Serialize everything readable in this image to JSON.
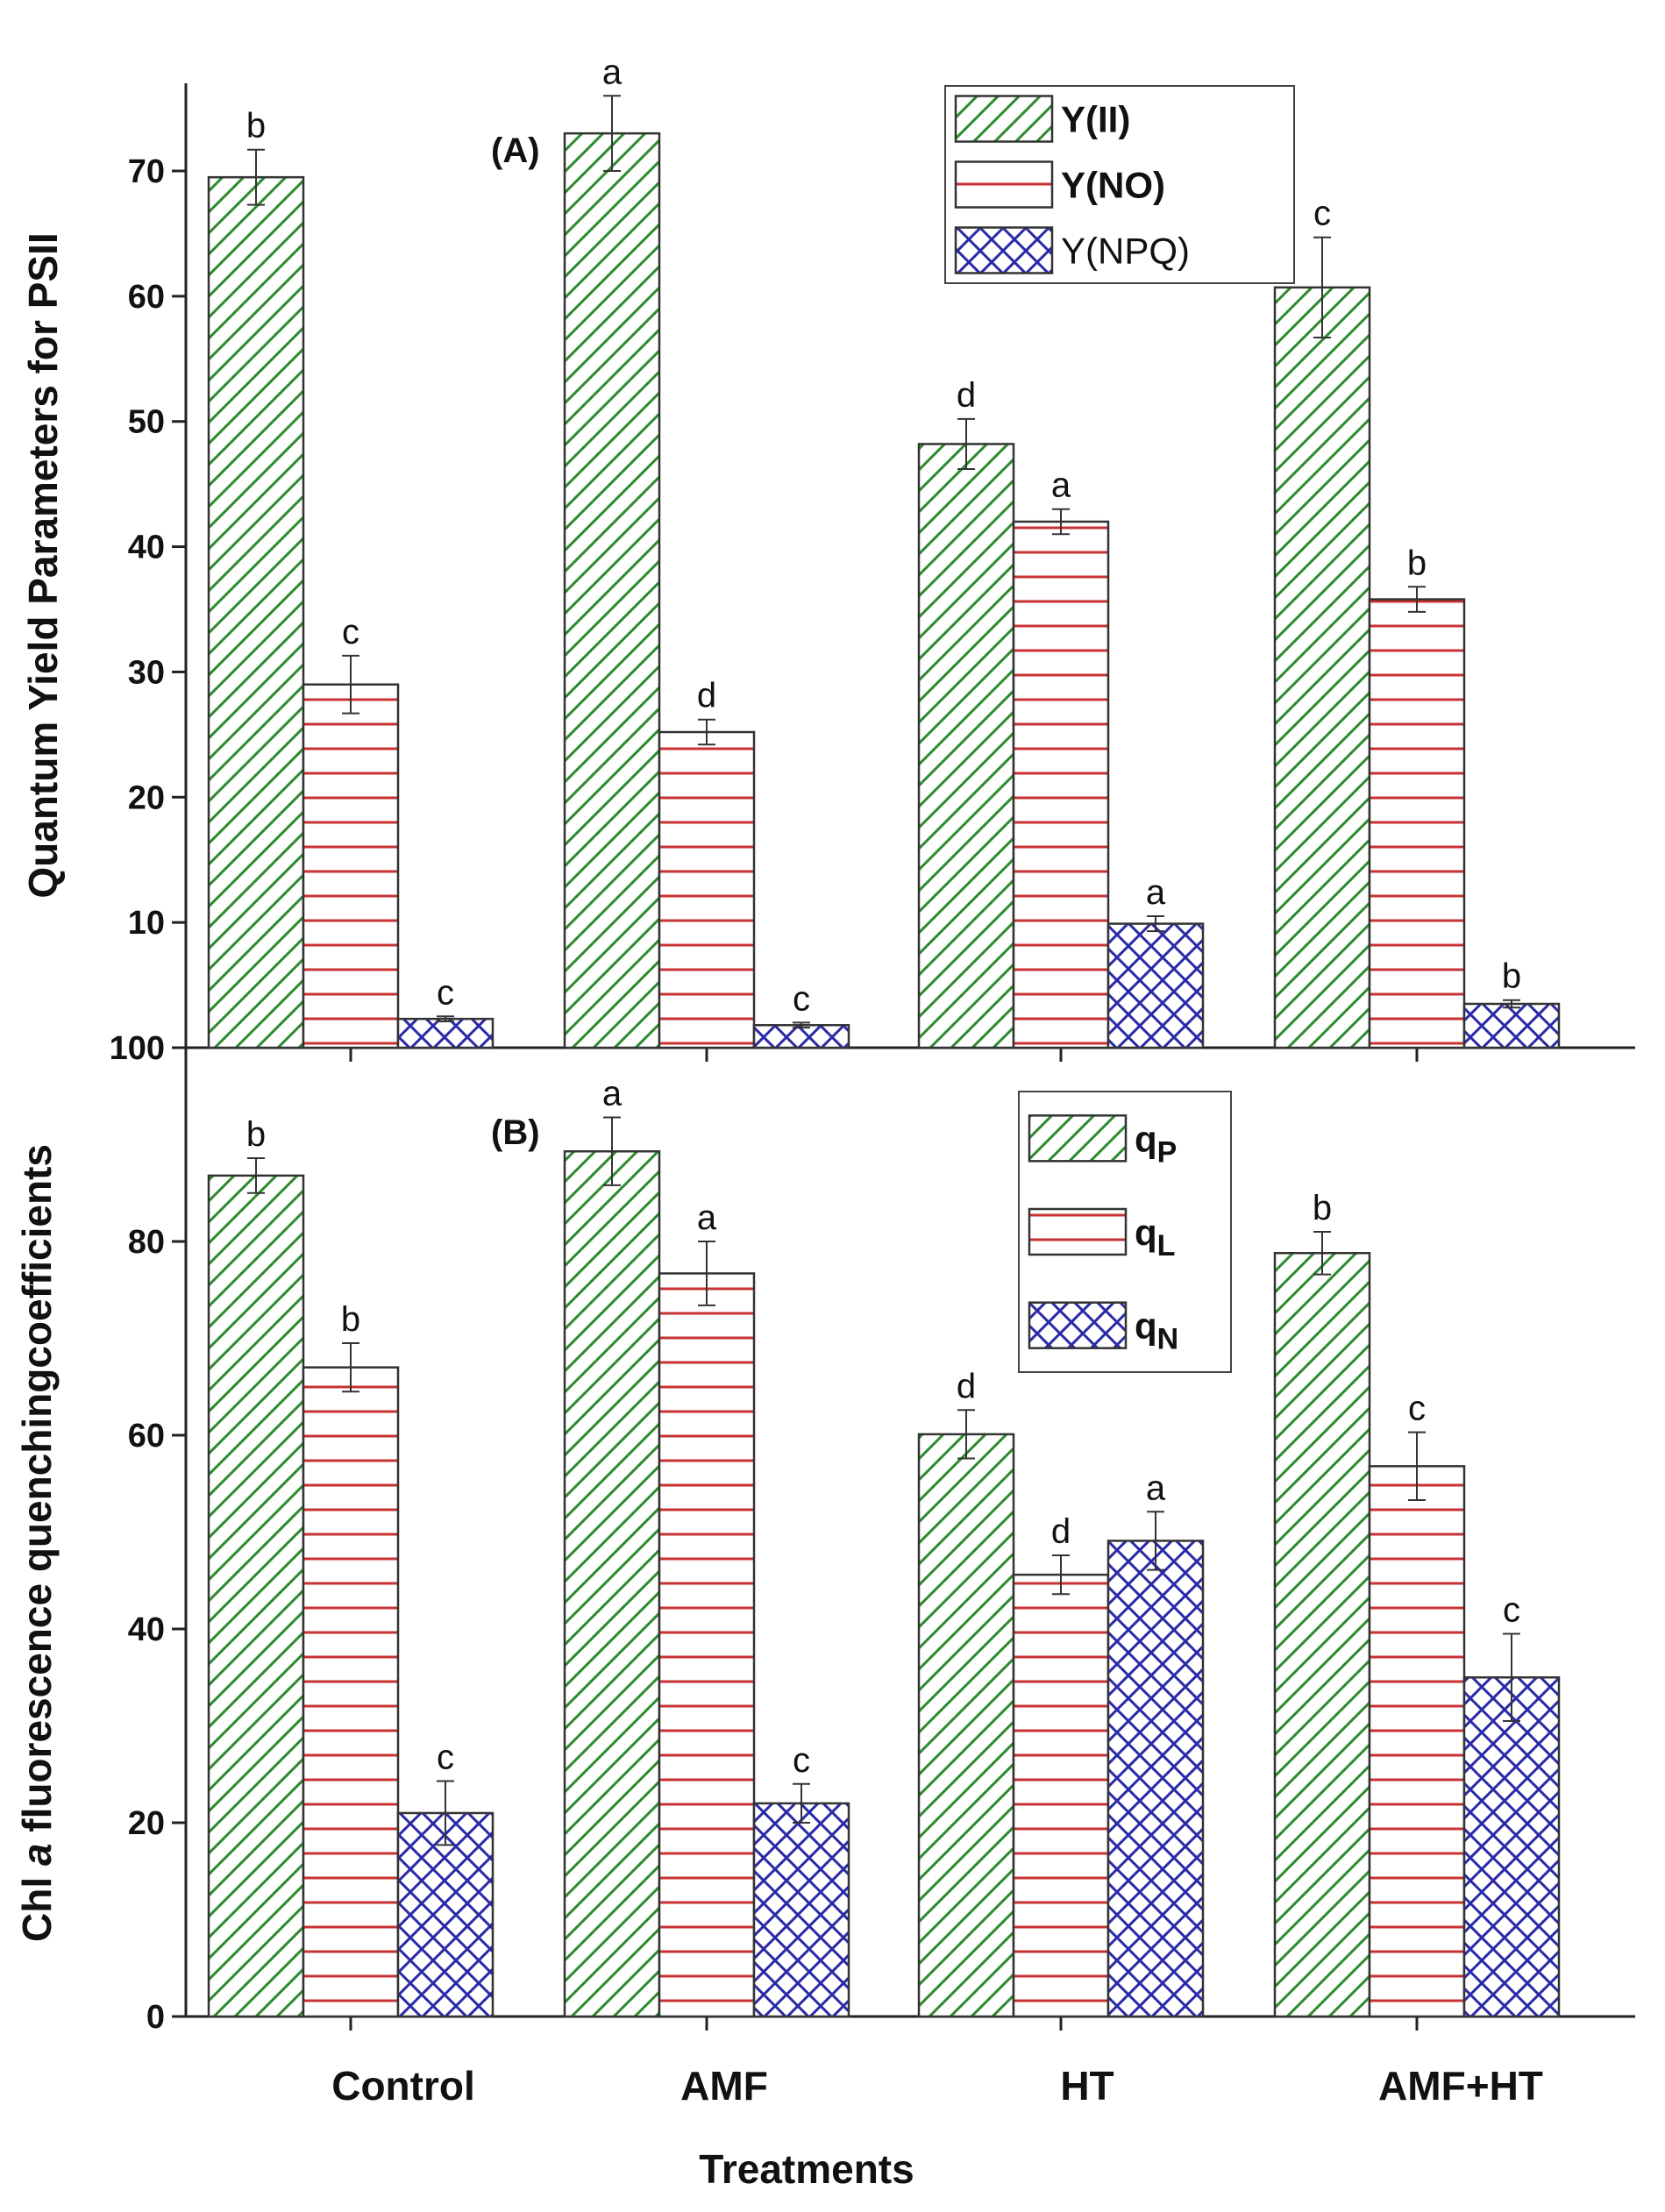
{
  "chart_data": [
    {
      "type": "bar",
      "panel_label": "(A)",
      "ylabel": "Quantum Yield Parameters for PSII",
      "xlabel": "",
      "ylim": [
        0,
        77
      ],
      "yticks": [
        10,
        20,
        30,
        40,
        50,
        60,
        70
      ],
      "categories": [
        "Control",
        "AMF",
        "HT",
        "AMF+HT"
      ],
      "legend_position": "top-right",
      "series": [
        {
          "name": "Y(II)",
          "pattern": "diagonal",
          "color": "#2e8b2e",
          "values": [
            69.5,
            73.0,
            48.2,
            60.7
          ],
          "errors": [
            2.2,
            3.0,
            2.0,
            4.0
          ],
          "letters": [
            "b",
            "a",
            "d",
            "c"
          ]
        },
        {
          "name": "Y(NO)",
          "pattern": "horizontal",
          "color": "#c83232",
          "values": [
            29.0,
            25.2,
            42.0,
            35.8
          ],
          "errors": [
            2.3,
            1.0,
            1.0,
            1.0
          ],
          "letters": [
            "c",
            "d",
            "a",
            "b"
          ]
        },
        {
          "name": "Y(NPQ)",
          "pattern": "cross",
          "color": "#2a2aa8",
          "values": [
            2.3,
            1.8,
            9.9,
            3.5
          ],
          "errors": [
            0.2,
            0.2,
            0.6,
            0.3
          ],
          "letters": [
            "c",
            "c",
            "a",
            "b"
          ]
        }
      ]
    },
    {
      "type": "bar",
      "panel_label": "(B)",
      "ylabel": "Chl a fluorescence quenchingcoefficients",
      "ylabel_parts": [
        "Chl ",
        "a",
        " fluorescence quenchingcoefficients"
      ],
      "xlabel": "Treatments",
      "ylim": [
        0,
        100
      ],
      "yticks": [
        0,
        20,
        40,
        60,
        80,
        100
      ],
      "categories": [
        "Control",
        "AMF",
        "HT",
        "AMF+HT"
      ],
      "legend_position": "top-right",
      "series": [
        {
          "name": "qP",
          "name_parts": [
            "q",
            "P"
          ],
          "pattern": "diagonal",
          "color": "#2e8b2e",
          "values": [
            86.8,
            89.3,
            60.1,
            78.8
          ],
          "errors": [
            1.8,
            3.5,
            2.5,
            2.2
          ],
          "letters": [
            "b",
            "a",
            "d",
            "b"
          ]
        },
        {
          "name": "qL",
          "name_parts": [
            "q",
            "L"
          ],
          "pattern": "horizontal",
          "color": "#c83232",
          "values": [
            67.0,
            76.7,
            45.6,
            56.8
          ],
          "errors": [
            2.5,
            3.3,
            2.0,
            3.5
          ],
          "letters": [
            "b",
            "a",
            "d",
            "c"
          ]
        },
        {
          "name": "qN",
          "name_parts": [
            "q",
            "N"
          ],
          "pattern": "cross",
          "color": "#2a2aa8",
          "values": [
            21.0,
            22.0,
            49.1,
            35.0
          ],
          "errors": [
            3.3,
            2.0,
            3.0,
            4.5
          ],
          "letters": [
            "c",
            "c",
            "a",
            "c"
          ]
        }
      ]
    }
  ]
}
